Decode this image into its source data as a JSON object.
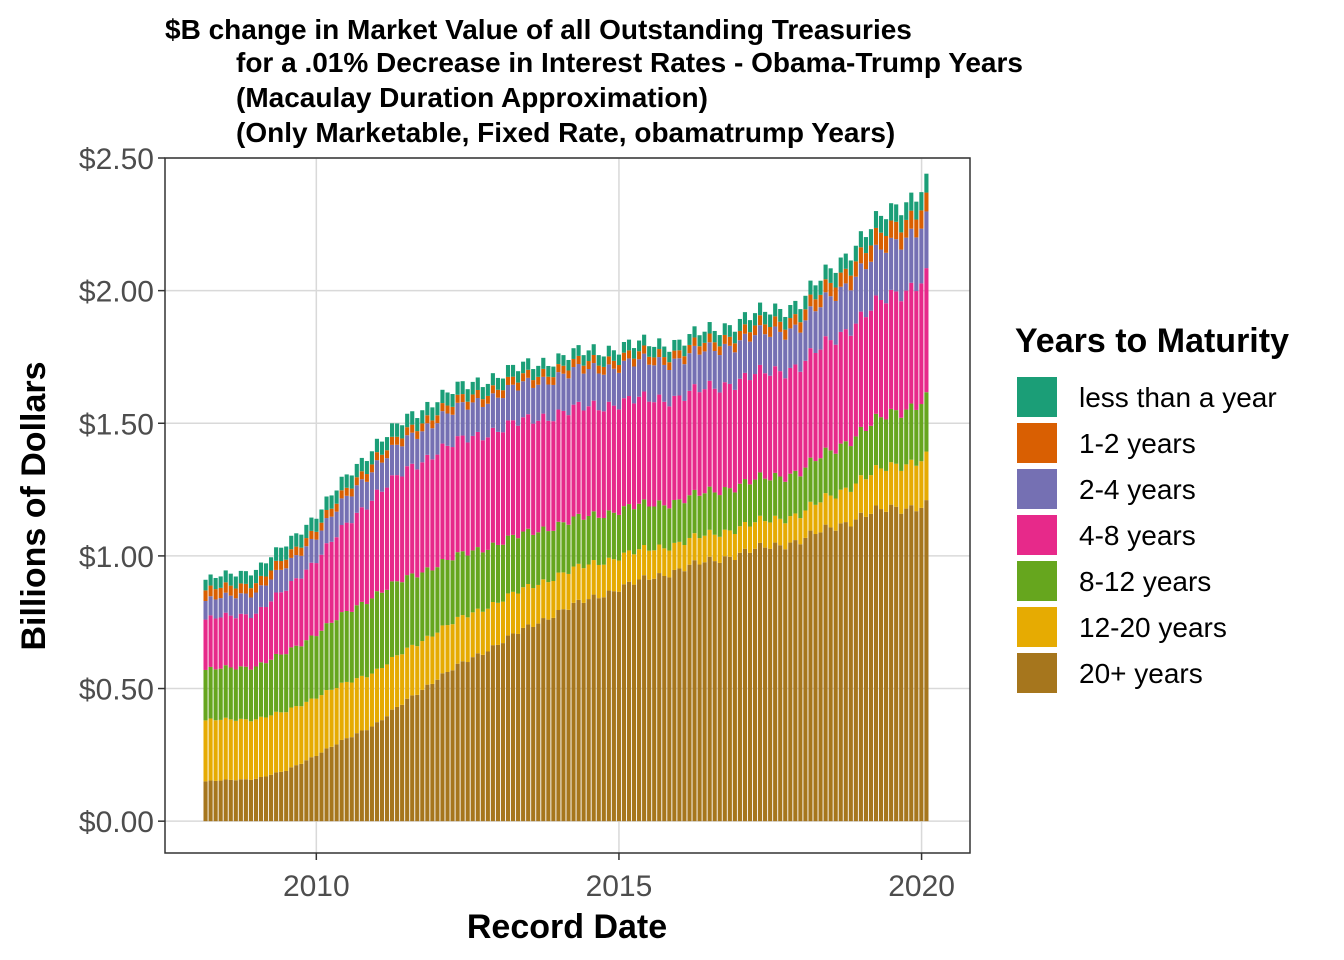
{
  "chart_data": {
    "type": "bar",
    "stacked": true,
    "title_lines": [
      "$B change in Market Value of all Outstanding Treasuries",
      "for a .01% Decrease in Interest Rates - Obama-Trump Years",
      "(Macaulay Duration Approximation)",
      "(Only Marketable, Fixed Rate, obamatrump Years)"
    ],
    "xlabel": "Record Date",
    "ylabel": "Billions of Dollars",
    "xlim": [
      2007.5,
      2020.8
    ],
    "ylim": [
      -0.12,
      2.5
    ],
    "x_ticks": [
      2010,
      2015,
      2020
    ],
    "x_tick_labels": [
      "2010",
      "2015",
      "2020"
    ],
    "y_ticks": [
      0,
      0.5,
      1.0,
      1.5,
      2.0,
      2.5
    ],
    "y_tick_labels": [
      "$0.00",
      "$0.50",
      "$1.00",
      "$1.50",
      "$2.00",
      "$2.50"
    ],
    "grid": true,
    "legend_position": "right",
    "legend_title": "Years to Maturity",
    "x_start": 2008.17,
    "x_end": 2020.08,
    "bar_count": 144,
    "series": [
      {
        "name": "20+ years",
        "color": "#A6761D",
        "knots_x": [
          2008.17,
          2009.0,
          2009.5,
          2010.0,
          2011.0,
          2012.0,
          2013.0,
          2014.0,
          2015.0,
          2016.0,
          2017.0,
          2018.0,
          2019.0,
          2019.5,
          2020.08
        ],
        "knots_y": [
          0.15,
          0.16,
          0.19,
          0.25,
          0.37,
          0.54,
          0.67,
          0.79,
          0.88,
          0.95,
          1.01,
          1.06,
          1.15,
          1.18,
          1.19
        ]
      },
      {
        "name": "12-20 years",
        "color": "#E6AB02",
        "knots_x": [
          2008.17,
          2010.0,
          2012.0,
          2014.0,
          2016.0,
          2018.0,
          2019.0,
          2020.08
        ],
        "knots_y": [
          0.23,
          0.22,
          0.18,
          0.14,
          0.1,
          0.1,
          0.14,
          0.18
        ]
      },
      {
        "name": "8-12 years",
        "color": "#66A61E",
        "knots_x": [
          2008.17,
          2009.0,
          2010.0,
          2011.0,
          2012.0,
          2014.0,
          2016.0,
          2018.0,
          2019.0,
          2020.08
        ],
        "knots_y": [
          0.19,
          0.2,
          0.24,
          0.29,
          0.25,
          0.19,
          0.16,
          0.16,
          0.18,
          0.22
        ]
      },
      {
        "name": "4-8 years",
        "color": "#E7298A",
        "knots_x": [
          2008.17,
          2009.0,
          2010.0,
          2011.0,
          2012.0,
          2013.0,
          2014.0,
          2016.0,
          2018.0,
          2019.0,
          2020.08
        ],
        "knots_y": [
          0.19,
          0.2,
          0.28,
          0.38,
          0.43,
          0.43,
          0.42,
          0.39,
          0.4,
          0.43,
          0.46
        ]
      },
      {
        "name": "2-4 years",
        "color": "#7570B3",
        "knots_x": [
          2008.17,
          2009.0,
          2010.0,
          2011.0,
          2012.0,
          2013.0,
          2014.0,
          2016.0,
          2018.0,
          2019.0,
          2020.08
        ],
        "knots_y": [
          0.07,
          0.08,
          0.09,
          0.11,
          0.12,
          0.13,
          0.14,
          0.14,
          0.15,
          0.18,
          0.21
        ]
      },
      {
        "name": "1-2 years",
        "color": "#D95F02",
        "knots_x": [
          2008.17,
          2010.0,
          2012.0,
          2014.0,
          2016.0,
          2018.0,
          2019.0,
          2020.08
        ],
        "knots_y": [
          0.04,
          0.03,
          0.03,
          0.03,
          0.03,
          0.04,
          0.06,
          0.07
        ]
      },
      {
        "name": "less than a year",
        "color": "#1B9E77",
        "knots_x": [
          2008.17,
          2009.0,
          2010.0,
          2012.0,
          2014.0,
          2016.0,
          2018.0,
          2019.0,
          2020.08
        ],
        "knots_y": [
          0.04,
          0.05,
          0.05,
          0.05,
          0.04,
          0.04,
          0.05,
          0.06,
          0.07
        ]
      }
    ]
  }
}
